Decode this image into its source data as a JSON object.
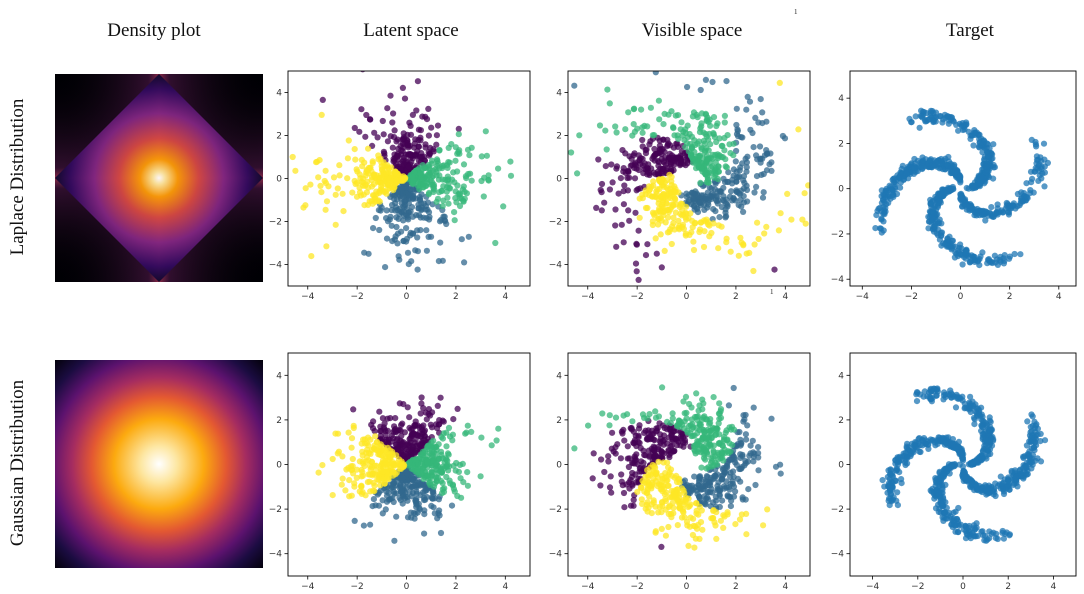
{
  "figure": {
    "column_titles": [
      "Density plot",
      "Latent space",
      "Visible space",
      "Target"
    ],
    "row_titles": [
      "Laplace Distribution",
      "Gaussian Distribution"
    ],
    "stray_marks": [
      "1",
      "1"
    ]
  },
  "chart_data": [
    {
      "type": "heatmap",
      "row": 0,
      "column": 0,
      "description_kind": "density",
      "distribution": "laplace",
      "colormap": "inferno"
    },
    {
      "type": "heatmap",
      "row": 1,
      "column": 0,
      "description_kind": "density",
      "distribution": "gaussian",
      "colormap": "inferno"
    },
    {
      "type": "scatter",
      "row": 0,
      "column": 1,
      "kind": "latent",
      "distribution": "laplace",
      "xlim": [
        -4.8,
        5.0
      ],
      "ylim": [
        -5.0,
        5.0
      ],
      "xticks": [
        -4,
        -2,
        0,
        2,
        4
      ],
      "yticks": [
        -4,
        -2,
        0,
        2,
        4
      ],
      "series": [
        {
          "color": "#440154"
        },
        {
          "color": "#31688e"
        },
        {
          "color": "#35b779"
        },
        {
          "color": "#fde725"
        }
      ],
      "n_per_series": 200
    },
    {
      "type": "scatter",
      "row": 0,
      "column": 2,
      "kind": "visible",
      "distribution": "laplace",
      "xlim": [
        -4.8,
        5.0
      ],
      "ylim": [
        -5.0,
        5.0
      ],
      "xticks": [
        -4,
        -2,
        0,
        2,
        4
      ],
      "yticks": [
        -4,
        -2,
        0,
        2,
        4
      ],
      "series": [
        {
          "color": "#440154"
        },
        {
          "color": "#31688e"
        },
        {
          "color": "#35b779"
        },
        {
          "color": "#fde725"
        }
      ],
      "n_per_series": 200
    },
    {
      "type": "scatter",
      "row": 0,
      "column": 3,
      "kind": "target",
      "xlim": [
        -4.5,
        4.7
      ],
      "ylim": [
        -4.3,
        5.2
      ],
      "xticks": [
        -4,
        -2,
        0,
        2,
        4
      ],
      "yticks": [
        -4,
        -2,
        0,
        2,
        4
      ],
      "series": [
        {
          "color": "#1f77b4"
        }
      ],
      "n_per_series": 800
    },
    {
      "type": "scatter",
      "row": 1,
      "column": 1,
      "kind": "latent",
      "distribution": "gaussian",
      "xlim": [
        -4.8,
        5.0
      ],
      "ylim": [
        -5.0,
        5.0
      ],
      "xticks": [
        -4,
        -2,
        0,
        2,
        4
      ],
      "yticks": [
        -4,
        -2,
        0,
        2,
        4
      ],
      "series": [
        {
          "color": "#440154"
        },
        {
          "color": "#31688e"
        },
        {
          "color": "#35b779"
        },
        {
          "color": "#fde725"
        }
      ],
      "n_per_series": 200
    },
    {
      "type": "scatter",
      "row": 1,
      "column": 2,
      "kind": "visible",
      "distribution": "gaussian",
      "xlim": [
        -4.8,
        5.0
      ],
      "ylim": [
        -5.0,
        5.0
      ],
      "xticks": [
        -4,
        -2,
        0,
        2,
        4
      ],
      "yticks": [
        -4,
        -2,
        0,
        2,
        4
      ],
      "series": [
        {
          "color": "#440154"
        },
        {
          "color": "#31688e"
        },
        {
          "color": "#35b779"
        },
        {
          "color": "#fde725"
        }
      ],
      "n_per_series": 200
    },
    {
      "type": "scatter",
      "row": 1,
      "column": 3,
      "kind": "target",
      "xlim": [
        -5.0,
        5.0
      ],
      "ylim": [
        -5.0,
        5.0
      ],
      "xticks": [
        -4,
        -2,
        0,
        2,
        4
      ],
      "yticks": [
        -4,
        -2,
        0,
        2,
        4
      ],
      "series": [
        {
          "color": "#1f77b4"
        }
      ],
      "n_per_series": 800
    }
  ]
}
